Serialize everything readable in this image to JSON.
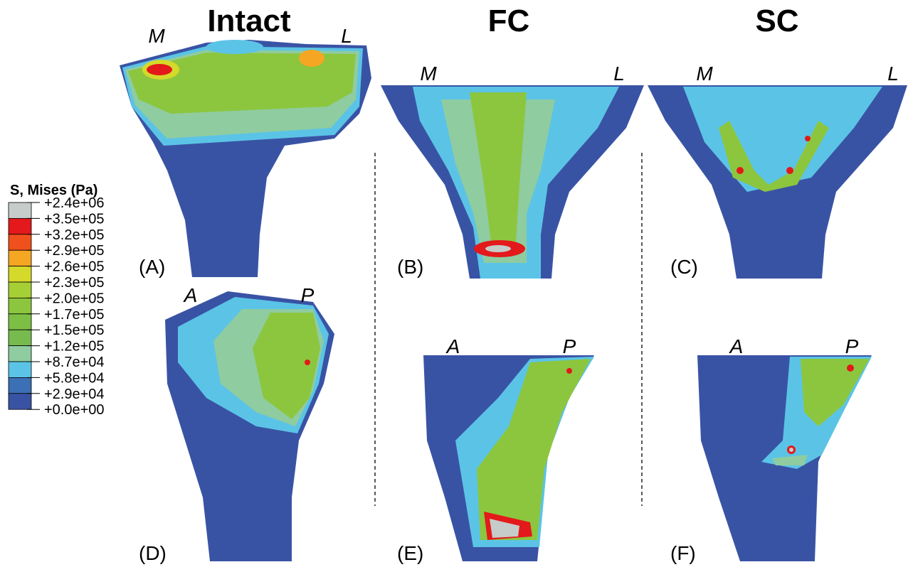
{
  "columns": [
    "Intact",
    "FC",
    "SC"
  ],
  "legend": {
    "title": "S, Mises (Pa)",
    "ticks": [
      "+2.4e+06",
      "+3.5e+05",
      "+3.2e+05",
      "+2.9e+05",
      "+2.6e+05",
      "+2.3e+05",
      "+2.0e+05",
      "+1.7e+05",
      "+1.5e+05",
      "+1.2e+05",
      "+8.7e+04",
      "+5.8e+04",
      "+2.9e+04",
      "+0.0e+00"
    ],
    "colors": [
      "#c5ccc9",
      "#e3191b",
      "#f0511c",
      "#f5a623",
      "#d5d92a",
      "#a6cf35",
      "#8cc63e",
      "#7dbf44",
      "#77bb4e",
      "#8fcca0",
      "#5bc4e6",
      "#3b6fb6",
      "#3953a4"
    ]
  },
  "panels": [
    {
      "label": "(A)",
      "orientation": [
        "M",
        "L"
      ]
    },
    {
      "label": "(B)",
      "orientation": [
        "M",
        "L"
      ]
    },
    {
      "label": "(C)",
      "orientation": [
        "M",
        "L"
      ]
    },
    {
      "label": "(D)",
      "orientation": [
        "A",
        "P"
      ]
    },
    {
      "label": "(E)",
      "orientation": [
        "A",
        "P"
      ]
    },
    {
      "label": "(F)",
      "orientation": [
        "A",
        "P"
      ]
    }
  ]
}
